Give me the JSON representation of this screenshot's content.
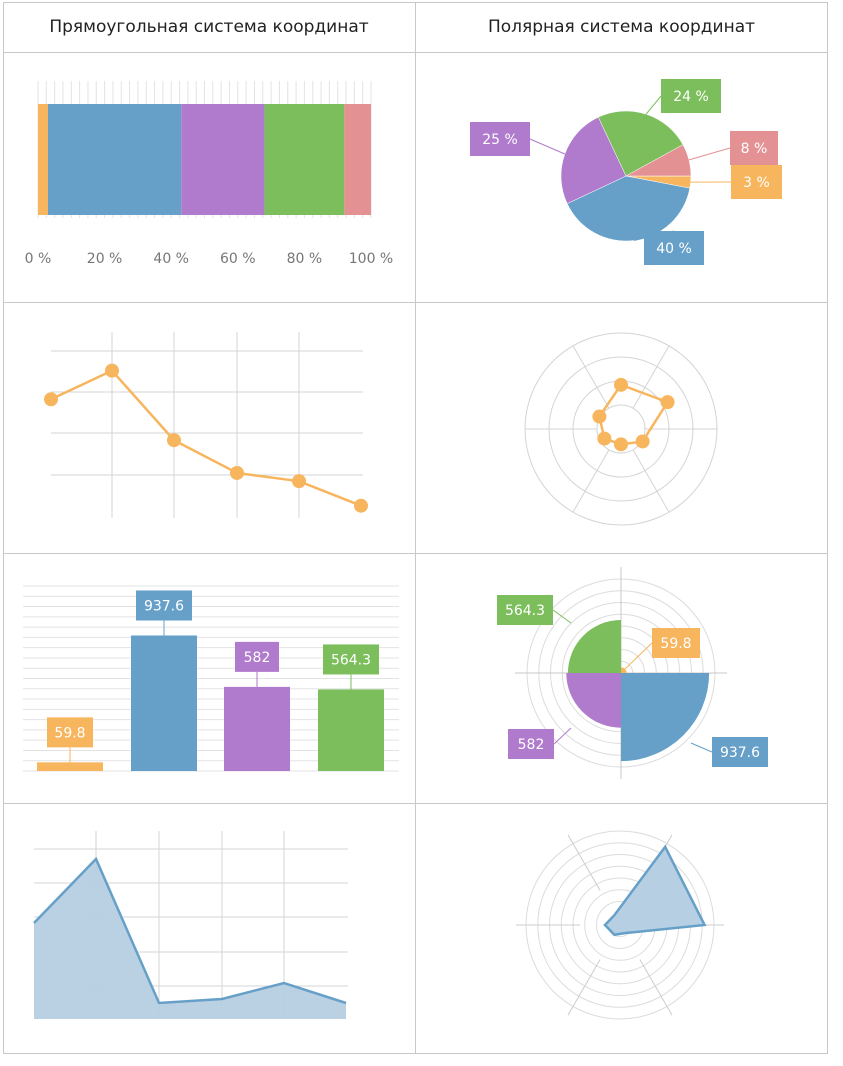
{
  "headers": {
    "cartesian": "Прямоугольная система координат",
    "polar": "Полярная система координат"
  },
  "colors": {
    "orange": "#f7b55e",
    "blue": "#66a0c8",
    "purple": "#b07acd",
    "green": "#7bbe5b",
    "pink": "#e39193",
    "grid": "#d4d4d4",
    "border": "#c8c8c8",
    "area_fill": "#b6cfe3"
  },
  "chart_data": [
    {
      "type": "bar",
      "stacked": true,
      "orientation": "horizontal",
      "percent": true,
      "segments": [
        {
          "color": "#f7b55e",
          "value": 3
        },
        {
          "color": "#66a0c8",
          "value": 40
        },
        {
          "color": "#b07acd",
          "value": 25
        },
        {
          "color": "#7bbe5b",
          "value": 24
        },
        {
          "color": "#e39193",
          "value": 8
        }
      ],
      "xlim": [
        0,
        100
      ],
      "ticks": [
        "0 %",
        "20 %",
        "40 %",
        "60 %",
        "80 %",
        "100 %"
      ],
      "tick_values": [
        0,
        20,
        40,
        60,
        80,
        100
      ]
    },
    {
      "type": "pie",
      "slices": [
        {
          "label": "40 %",
          "value": 40,
          "color": "#66a0c8"
        },
        {
          "label": "25 %",
          "value": 25,
          "color": "#b07acd"
        },
        {
          "label": "24 %",
          "value": 24,
          "color": "#7bbe5b"
        },
        {
          "label": "8 %",
          "value": 8,
          "color": "#e39193"
        },
        {
          "label": "3 %",
          "value": 3,
          "color": "#f7b55e"
        }
      ],
      "start_angle_deg": 0,
      "direction": "clockwise"
    },
    {
      "type": "line",
      "x": [
        0,
        1,
        2,
        3,
        4,
        5
      ],
      "values": [
        28,
        35,
        18,
        10,
        8,
        2
      ],
      "ylim": [
        -1,
        42
      ],
      "color": "#f7b55e",
      "grid": true
    },
    {
      "type": "scatter",
      "polar": true,
      "angles_deg": [
        0,
        60,
        120,
        180,
        240,
        300
      ],
      "values": [
        23,
        28,
        13,
        8,
        10,
        13
      ],
      "rmax": 50,
      "color": "#f7b55e",
      "grid": true
    },
    {
      "type": "bar",
      "categories": [
        "",
        "",
        "",
        ""
      ],
      "values": [
        59.8,
        937.6,
        582,
        564.3
      ],
      "labels": [
        "59.8",
        "937.6",
        "582",
        "564.3"
      ],
      "colors": [
        "#f7b55e",
        "#66a0c8",
        "#b07acd",
        "#7bbe5b"
      ],
      "ylim": [
        0,
        1280
      ],
      "grid": true
    },
    {
      "type": "pie",
      "polar": true,
      "rose": true,
      "slices": [
        {
          "label": "59.8",
          "value": 59.8,
          "color": "#f7b55e"
        },
        {
          "label": "937.6",
          "value": 937.6,
          "color": "#66a0c8"
        },
        {
          "label": "582",
          "value": 582,
          "color": "#b07acd"
        },
        {
          "label": "564.3",
          "value": 564.3,
          "color": "#7bbe5b"
        }
      ],
      "rmax": 1000,
      "grid": true
    },
    {
      "type": "area",
      "x": [
        0,
        1,
        2,
        3,
        4,
        5
      ],
      "values": [
        24,
        40,
        4,
        5,
        9,
        4
      ],
      "ylim": [
        0,
        44
      ],
      "color": "#66a0c8",
      "grid": true
    },
    {
      "type": "area",
      "polar": true,
      "angles_deg": [
        0,
        60,
        120,
        180,
        240,
        300
      ],
      "values": [
        48,
        45,
        5,
        6,
        8,
        6
      ],
      "rmax": 50,
      "color": "#66a0c8",
      "grid": true
    }
  ]
}
